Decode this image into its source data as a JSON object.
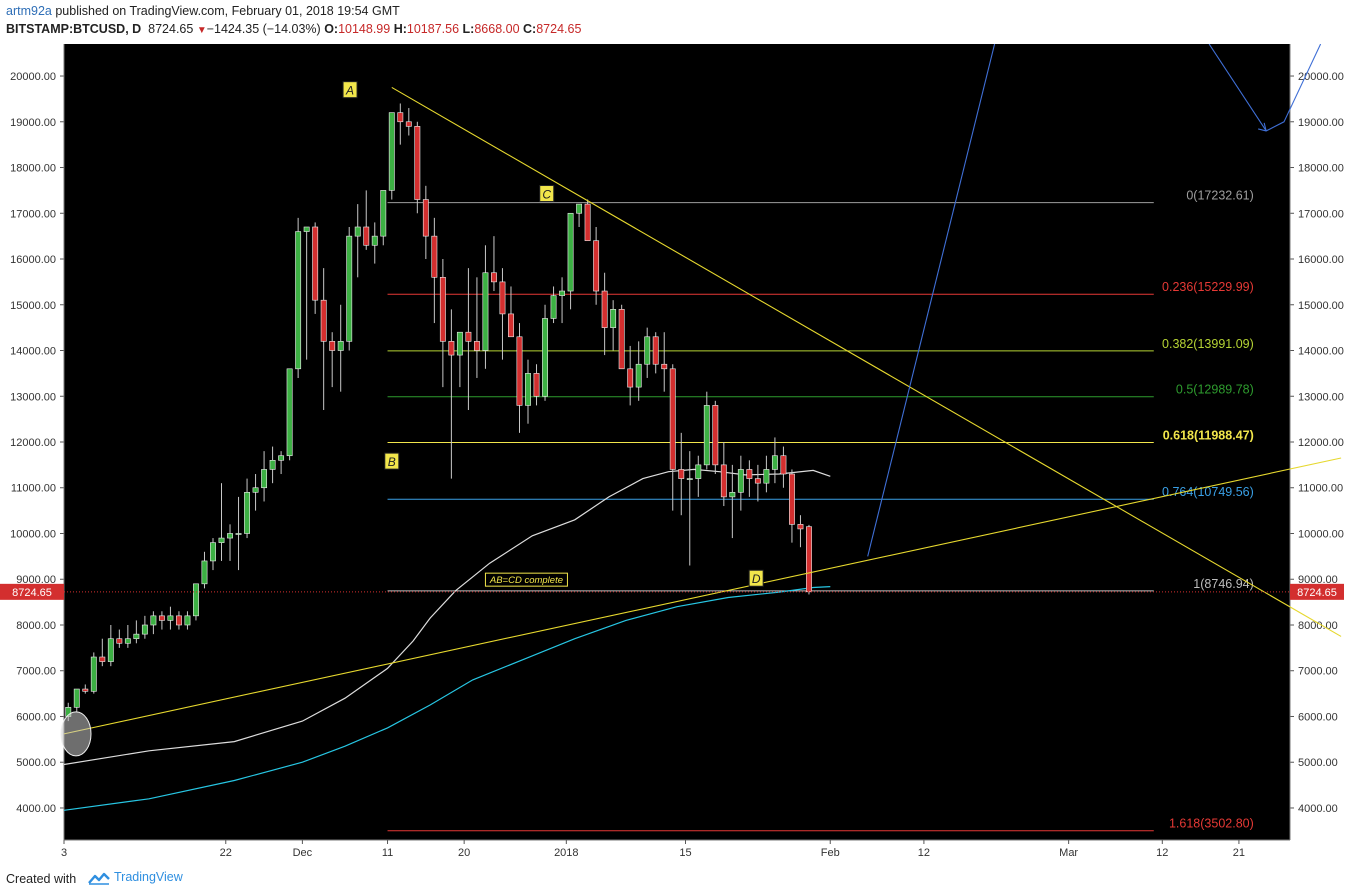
{
  "header": {
    "author": "artm92a",
    "published": " published on TradingView.com, February 01, 2018 19:54 GMT",
    "symbol": "BITSTAMP:BTCUSD, D",
    "last": "8724.65",
    "change": "−1424.35 (−14.03%)",
    "o_label": "O:",
    "o_value": "10148.99",
    "h_label": "H:",
    "h_value": "10187.56",
    "l_label": "L:",
    "l_value": "8668.00",
    "c_label": "C:",
    "c_value": "8724.65"
  },
  "footer": {
    "created_with": "Created with",
    "brand": "TradingView"
  },
  "colors": {
    "background": "#000000",
    "up": "#3cb043",
    "down": "#d32f2f",
    "fib_0": "#9e9e9e",
    "fib_236": "#e53935",
    "fib_382": "#b5d334",
    "fib_5": "#2e9c2e",
    "fib_618": "#f2e64b",
    "fib_764": "#3aa0e6",
    "fib_1": "#bdbdbd",
    "fib_1618": "#e53935",
    "trend": "#e6d82e",
    "ma_white": "#dddddd",
    "ma_cyan": "#27c6e3",
    "projection": "#3f6fd6",
    "price_tag": "#d32f2f"
  },
  "chart_data": {
    "type": "candlestick",
    "symbol": "BITSTAMP:BTCUSD",
    "timeframe": "D",
    "ylim": [
      3300,
      20700
    ],
    "y_ticks": [
      4000,
      5000,
      6000,
      7000,
      8000,
      9000,
      10000,
      11000,
      12000,
      13000,
      14000,
      15000,
      16000,
      17000,
      18000,
      19000,
      20000
    ],
    "x_tick_labels": [
      {
        "label": "3",
        "day": 0
      },
      {
        "label": "22",
        "day": 19
      },
      {
        "label": "Dec",
        "day": 28
      },
      {
        "label": "11",
        "day": 38
      },
      {
        "label": "20",
        "day": 47
      },
      {
        "label": "2018",
        "day": 59
      },
      {
        "label": "15",
        "day": 73
      },
      {
        "label": "Feb",
        "day": 90
      },
      {
        "label": "12",
        "day": 101
      },
      {
        "label": "Mar",
        "day": 118
      },
      {
        "label": "12",
        "day": 129
      },
      {
        "label": "21",
        "day": 138
      }
    ],
    "x_range_days": [
      0,
      144
    ],
    "ohlc": [
      [
        6000,
        6300,
        5900,
        6200
      ],
      [
        6200,
        6600,
        6100,
        6600
      ],
      [
        6600,
        6700,
        6500,
        6550
      ],
      [
        6550,
        7400,
        6500,
        7300
      ],
      [
        7300,
        7700,
        7100,
        7200
      ],
      [
        7200,
        8000,
        7100,
        7700
      ],
      [
        7700,
        7900,
        7500,
        7600
      ],
      [
        7600,
        8000,
        7500,
        7700
      ],
      [
        7700,
        8100,
        7600,
        7800
      ],
      [
        7800,
        8200,
        7700,
        8000
      ],
      [
        8000,
        8300,
        7800,
        8200
      ],
      [
        8200,
        8300,
        7900,
        8100
      ],
      [
        8100,
        8400,
        7900,
        8200
      ],
      [
        8200,
        8300,
        7900,
        8000
      ],
      [
        8000,
        8300,
        7900,
        8200
      ],
      [
        8200,
        8900,
        8100,
        8900
      ],
      [
        8900,
        9600,
        8800,
        9400
      ],
      [
        9400,
        9900,
        9200,
        9800
      ],
      [
        9800,
        11100,
        9400,
        9900
      ],
      [
        9900,
        10200,
        9400,
        10000
      ],
      [
        10000,
        10800,
        9200,
        10000
      ],
      [
        10000,
        11200,
        9900,
        10900
      ],
      [
        10900,
        11300,
        10500,
        11000
      ],
      [
        11000,
        11800,
        10700,
        11400
      ],
      [
        11400,
        11900,
        11100,
        11600
      ],
      [
        11600,
        11800,
        11300,
        11700
      ],
      [
        11700,
        13500,
        11600,
        13600
      ],
      [
        13600,
        16900,
        13400,
        16600
      ],
      [
        16600,
        16700,
        13800,
        16700
      ],
      [
        16700,
        16800,
        14800,
        15100
      ],
      [
        15100,
        15800,
        12700,
        14200
      ],
      [
        14200,
        14400,
        13200,
        14000
      ],
      [
        14000,
        15000,
        13100,
        14200
      ],
      [
        14200,
        16700,
        14000,
        16500
      ],
      [
        16500,
        17200,
        15600,
        16700
      ],
      [
        16700,
        17500,
        16200,
        16300
      ],
      [
        16300,
        16800,
        15900,
        16500
      ],
      [
        16500,
        17400,
        16300,
        17500
      ],
      [
        17500,
        19200,
        17300,
        19200
      ],
      [
        19200,
        19400,
        18500,
        19000
      ],
      [
        19000,
        19300,
        18700,
        18900
      ],
      [
        18900,
        19000,
        17000,
        17300
      ],
      [
        17300,
        17600,
        16000,
        16500
      ],
      [
        16500,
        16900,
        14600,
        15600
      ],
      [
        15600,
        16000,
        13200,
        14200
      ],
      [
        14200,
        14900,
        11200,
        13900
      ],
      [
        13900,
        14300,
        13200,
        14400
      ],
      [
        14400,
        15800,
        12700,
        14200
      ],
      [
        14200,
        15600,
        13400,
        14000
      ],
      [
        14000,
        16300,
        13600,
        15700
      ],
      [
        15700,
        16500,
        15300,
        15500
      ],
      [
        15500,
        15800,
        13800,
        14800
      ],
      [
        14800,
        15400,
        14300,
        14300
      ],
      [
        14300,
        14600,
        12200,
        12800
      ],
      [
        12800,
        13800,
        12400,
        13500
      ],
      [
        13500,
        13700,
        12800,
        13000
      ],
      [
        13000,
        15000,
        12900,
        14700
      ],
      [
        14700,
        15400,
        14600,
        15200
      ],
      [
        15200,
        15600,
        14600,
        15300
      ],
      [
        15300,
        17000,
        14900,
        17000
      ],
      [
        17000,
        17200,
        16700,
        17200
      ],
      [
        17200,
        17300,
        16400,
        16400
      ],
      [
        16400,
        16700,
        15000,
        15300
      ],
      [
        15300,
        15700,
        13900,
        14500
      ],
      [
        14500,
        15100,
        14000,
        14900
      ],
      [
        14900,
        15000,
        13600,
        13600
      ],
      [
        13600,
        14100,
        12800,
        13200
      ],
      [
        13200,
        14200,
        12900,
        13700
      ],
      [
        13700,
        14500,
        13400,
        14300
      ],
      [
        14300,
        14400,
        13500,
        13700
      ],
      [
        13700,
        14400,
        13100,
        13600
      ],
      [
        13600,
        13700,
        10500,
        11400
      ],
      [
        11400,
        12200,
        10400,
        11200
      ],
      [
        11200,
        11800,
        9300,
        11200
      ],
      [
        11200,
        11700,
        10800,
        11500
      ],
      [
        11500,
        13100,
        11400,
        12800
      ],
      [
        12800,
        12900,
        11300,
        11500
      ],
      [
        11500,
        12000,
        10600,
        10800
      ],
      [
        10800,
        11500,
        9900,
        10900
      ],
      [
        10900,
        11700,
        10500,
        11400
      ],
      [
        11400,
        11600,
        10800,
        11200
      ],
      [
        11200,
        11500,
        10700,
        11100
      ],
      [
        11100,
        11700,
        10900,
        11400
      ],
      [
        11400,
        12100,
        11100,
        11700
      ],
      [
        11700,
        11900,
        11000,
        11300
      ],
      [
        11300,
        11400,
        9800,
        10200
      ],
      [
        10200,
        10400,
        9700,
        10100
      ],
      [
        10149,
        10188,
        8668,
        8725
      ]
    ],
    "moving_averages": [
      {
        "name": "white",
        "points": [
          [
            0,
            4950
          ],
          [
            10,
            5250
          ],
          [
            20,
            5450
          ],
          [
            28,
            5900
          ],
          [
            33,
            6400
          ],
          [
            38,
            7050
          ],
          [
            41,
            7650
          ],
          [
            43,
            8150
          ],
          [
            46,
            8750
          ],
          [
            50,
            9350
          ],
          [
            55,
            9950
          ],
          [
            60,
            10300
          ],
          [
            64,
            10800
          ],
          [
            68,
            11200
          ],
          [
            71,
            11350
          ],
          [
            74,
            11400
          ],
          [
            77,
            11350
          ],
          [
            80,
            11280
          ],
          [
            84,
            11300
          ],
          [
            88,
            11380
          ],
          [
            90,
            11250
          ]
        ]
      },
      {
        "name": "cyan",
        "points": [
          [
            0,
            3950
          ],
          [
            10,
            4200
          ],
          [
            20,
            4600
          ],
          [
            28,
            5000
          ],
          [
            33,
            5350
          ],
          [
            38,
            5750
          ],
          [
            43,
            6250
          ],
          [
            48,
            6800
          ],
          [
            54,
            7250
          ],
          [
            60,
            7700
          ],
          [
            66,
            8100
          ],
          [
            72,
            8400
          ],
          [
            78,
            8600
          ],
          [
            84,
            8720
          ],
          [
            88,
            8820
          ],
          [
            90,
            8840
          ]
        ]
      }
    ],
    "fib_levels": [
      {
        "ratio": "0",
        "value": 17232.61,
        "label": "0(17232.61)"
      },
      {
        "ratio": "0.236",
        "value": 15229.99,
        "label": "0.236(15229.99)"
      },
      {
        "ratio": "0.382",
        "value": 13991.09,
        "label": "0.382(13991.09)"
      },
      {
        "ratio": "0.5",
        "value": 12989.78,
        "label": "0.5(12989.78)"
      },
      {
        "ratio": "0.618",
        "value": 11988.47,
        "label": "0.618(11988.47)"
      },
      {
        "ratio": "0.764",
        "value": 10749.56,
        "label": "0.764(10749.56)"
      },
      {
        "ratio": "1",
        "value": 8746.94,
        "label": "1(8746.94)"
      },
      {
        "ratio": "1.618",
        "value": 3502.8,
        "label": "1.618(3502.80)"
      }
    ],
    "fib_range_days": [
      38,
      128
    ],
    "trendlines": [
      {
        "name": "down",
        "from": [
          38.5,
          19750
        ],
        "to": [
          150,
          7750
        ]
      },
      {
        "name": "up",
        "from": [
          0,
          5620
        ],
        "to": [
          150,
          11650
        ]
      }
    ],
    "projection": {
      "points": [
        [
          94.4,
          9500
        ],
        [
          109.3,
          20700
        ]
      ]
    },
    "projection2": {
      "points": [
        [
          134.5,
          20700
        ],
        [
          141.2,
          18800
        ],
        [
          143.3,
          19000
        ],
        [
          147.6,
          20700
        ]
      ]
    },
    "pattern_labels": [
      {
        "text": "A",
        "day": 33.6,
        "price": 19680
      },
      {
        "text": "B",
        "day": 38.5,
        "price": 11560
      },
      {
        "text": "C",
        "day": 56.7,
        "price": 17410
      },
      {
        "text": "D",
        "day": 81.3,
        "price": 9000
      }
    ],
    "annotation": {
      "text": "AB=CD complete",
      "day": 49.5,
      "price": 8980
    },
    "last_price": 8724.65,
    "last_price_label": "8724.65"
  }
}
